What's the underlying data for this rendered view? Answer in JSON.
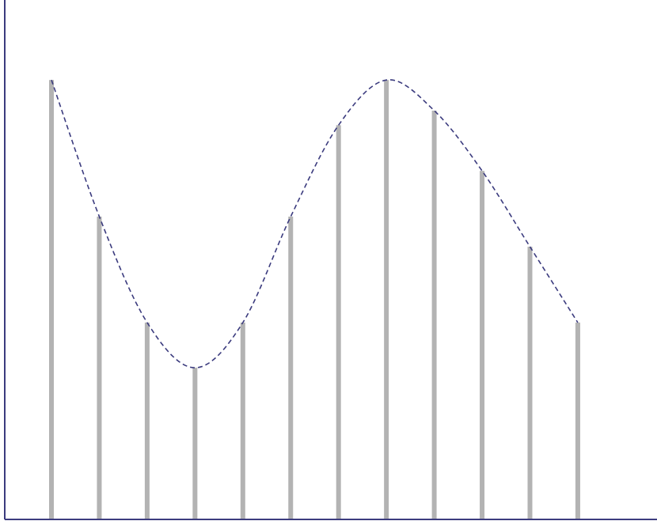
{
  "chart_data": {
    "type": "bar",
    "categories": [
      null,
      null,
      null,
      null,
      null,
      null,
      null,
      null,
      null,
      null,
      null,
      null
    ],
    "values": [
      84.6,
      58.3,
      37.9,
      29.2,
      37.9,
      58.3,
      75.9,
      84.6,
      78.7,
      67.1,
      52.5,
      37.9
    ],
    "color": "#b3b3b3",
    "trend_curve": {
      "color": "#3b3b7e",
      "dashed": true
    },
    "axis_color": "#3b3b7e",
    "ylim": [
      0,
      100
    ]
  }
}
